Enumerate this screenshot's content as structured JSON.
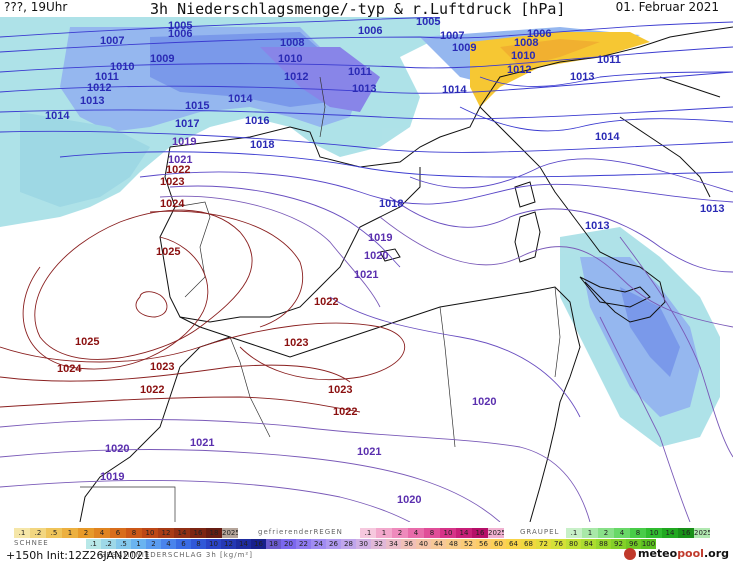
{
  "header": {
    "time": "???, 19Uhr",
    "title": "3h Niederschlagsmenge/-typ & r.Luftdruck [hPa]",
    "date": "01. Februar 2021"
  },
  "isobar_labels": [
    {
      "text": "1005",
      "color": "blue"
    },
    {
      "text": "1006",
      "color": "blue"
    },
    {
      "text": "1007",
      "color": "blue"
    },
    {
      "text": "1009",
      "color": "blue"
    },
    {
      "text": "1010",
      "color": "blue"
    },
    {
      "text": "1011",
      "color": "blue"
    },
    {
      "text": "1012",
      "color": "blue"
    },
    {
      "text": "1013",
      "color": "blue"
    },
    {
      "text": "1014",
      "color": "blue"
    },
    {
      "text": "1015",
      "color": "blue"
    },
    {
      "text": "1017",
      "color": "blue"
    },
    {
      "text": "1016",
      "color": "blue"
    },
    {
      "text": "1018",
      "color": "blue"
    },
    {
      "text": "1019",
      "color": "purple"
    },
    {
      "text": "1021",
      "color": "purple"
    },
    {
      "text": "1022",
      "color": "red"
    },
    {
      "text": "1023",
      "color": "red"
    },
    {
      "text": "1024",
      "color": "red"
    },
    {
      "text": "1025",
      "color": "red"
    },
    {
      "text": "1025",
      "color": "red"
    },
    {
      "text": "1024",
      "color": "red"
    },
    {
      "text": "1023",
      "color": "red"
    },
    {
      "text": "1022",
      "color": "red"
    },
    {
      "text": "1022",
      "color": "red"
    },
    {
      "text": "1023",
      "color": "red"
    },
    {
      "text": "1023",
      "color": "red"
    },
    {
      "text": "1022",
      "color": "red"
    },
    {
      "text": "1008",
      "color": "blue"
    },
    {
      "text": "1010",
      "color": "blue"
    },
    {
      "text": "1012",
      "color": "blue"
    },
    {
      "text": "1011",
      "color": "blue"
    },
    {
      "text": "1013",
      "color": "blue"
    },
    {
      "text": "1006",
      "color": "blue"
    },
    {
      "text": "1005",
      "color": "blue"
    },
    {
      "text": "1007",
      "color": "blue"
    },
    {
      "text": "1009",
      "color": "blue"
    },
    {
      "text": "1006",
      "color": "blue"
    },
    {
      "text": "1008",
      "color": "blue"
    },
    {
      "text": "1010",
      "color": "blue"
    },
    {
      "text": "1011",
      "color": "blue"
    },
    {
      "text": "1012",
      "color": "blue"
    },
    {
      "text": "1013",
      "color": "blue"
    },
    {
      "text": "1014",
      "color": "blue"
    },
    {
      "text": "1014",
      "color": "blue"
    },
    {
      "text": "1014",
      "color": "blue"
    },
    {
      "text": "1013",
      "color": "blue"
    },
    {
      "text": "1013",
      "color": "blue"
    },
    {
      "text": "1018",
      "color": "blue"
    },
    {
      "text": "1019",
      "color": "purple"
    },
    {
      "text": "1020",
      "color": "purple"
    },
    {
      "text": "1021",
      "color": "purple"
    },
    {
      "text": "1020",
      "color": "purple"
    },
    {
      "text": "1021",
      "color": "purple"
    },
    {
      "text": "1021",
      "color": "purple"
    },
    {
      "text": "1020",
      "color": "purple"
    },
    {
      "text": "1020",
      "color": "purple"
    },
    {
      "text": "1019",
      "color": "purple"
    }
  ],
  "legend": {
    "snow_title": "SCHNEE",
    "snow_values": [
      ".1",
      ".2",
      ".5",
      "1",
      "2",
      "4",
      "6",
      "8",
      "10",
      "12",
      "14",
      "16",
      "18",
      "2025+"
    ],
    "freezing_rain_title": "gefrierenderREGEN",
    "freezing_rain_values": [
      ".1",
      "1",
      "2",
      "4",
      "8",
      "10",
      "14",
      "16",
      "2025+"
    ],
    "graupel_title": "GRAUPEL",
    "graupel_values": [
      ".1",
      "1",
      "2",
      "4",
      "8",
      "10",
      "14",
      "16",
      "2025+"
    ],
    "total_title": "GESAMTNIEDERSCHLAG 3h [kg/m²]",
    "total_values": [
      ".1",
      ".2",
      ".5",
      "1",
      "2",
      "4",
      "6",
      "8",
      "10",
      "12",
      "14",
      "16",
      "18",
      "20",
      "22",
      "24",
      "26",
      "28",
      "30",
      "32",
      "34",
      "36",
      "40",
      "44",
      "48",
      "52",
      "56",
      "60",
      "64",
      "68",
      "72",
      "76",
      "80",
      "84",
      "88",
      "92",
      "96",
      "100"
    ],
    "colors": {
      "snow": [
        "#f5e6a8",
        "#f2d680",
        "#efc45a",
        "#ecb040",
        "#e79a2a",
        "#e08420",
        "#d86d1c",
        "#cc5818",
        "#bd4716",
        "#a83b15",
        "#922f14",
        "#7c2513",
        "#661c12",
        "#b5a59a"
      ],
      "freezing": [
        "#f6c8de",
        "#f2a8cc",
        "#ee8abc",
        "#e86caa",
        "#e04e98",
        "#d63488",
        "#c81f78",
        "#b50f68",
        "#f0b0d0"
      ],
      "graupel": [
        "#c8f0c8",
        "#a8e8a8",
        "#88e088",
        "#68d868",
        "#48cc48",
        "#30bc30",
        "#20a820",
        "#189018",
        "#b0e8b0"
      ],
      "total": [
        "#b8e8e8",
        "#9ed8e8",
        "#84c8ec",
        "#6ab4f0",
        "#5a9cf0",
        "#4a84ec",
        "#3a6ce4",
        "#3058d8",
        "#2a44c8",
        "#2438b4",
        "#1e2ca0",
        "#18208c",
        "#6a5acd",
        "#7b68ee",
        "#8e7af0",
        "#a08cf2",
        "#b09af0",
        "#c0a6ec",
        "#d0b0e4",
        "#e0b8d8",
        "#eabcc8",
        "#f0c0b8",
        "#f4c4a8",
        "#f6c898",
        "#f8cc88",
        "#facc78",
        "#fccc68",
        "#fcd058",
        "#f8d448",
        "#f0d840",
        "#e4dc3c",
        "#d4e038",
        "#c0e034",
        "#acdc30",
        "#98d82c",
        "#84d028",
        "#70c824",
        "#5cc020"
      ]
    }
  },
  "footer": {
    "run_info": "+150h  Init:12Z26JAN2021",
    "brand_left": "meteo",
    "brand_mid": "pool",
    "brand_right": ".org"
  }
}
